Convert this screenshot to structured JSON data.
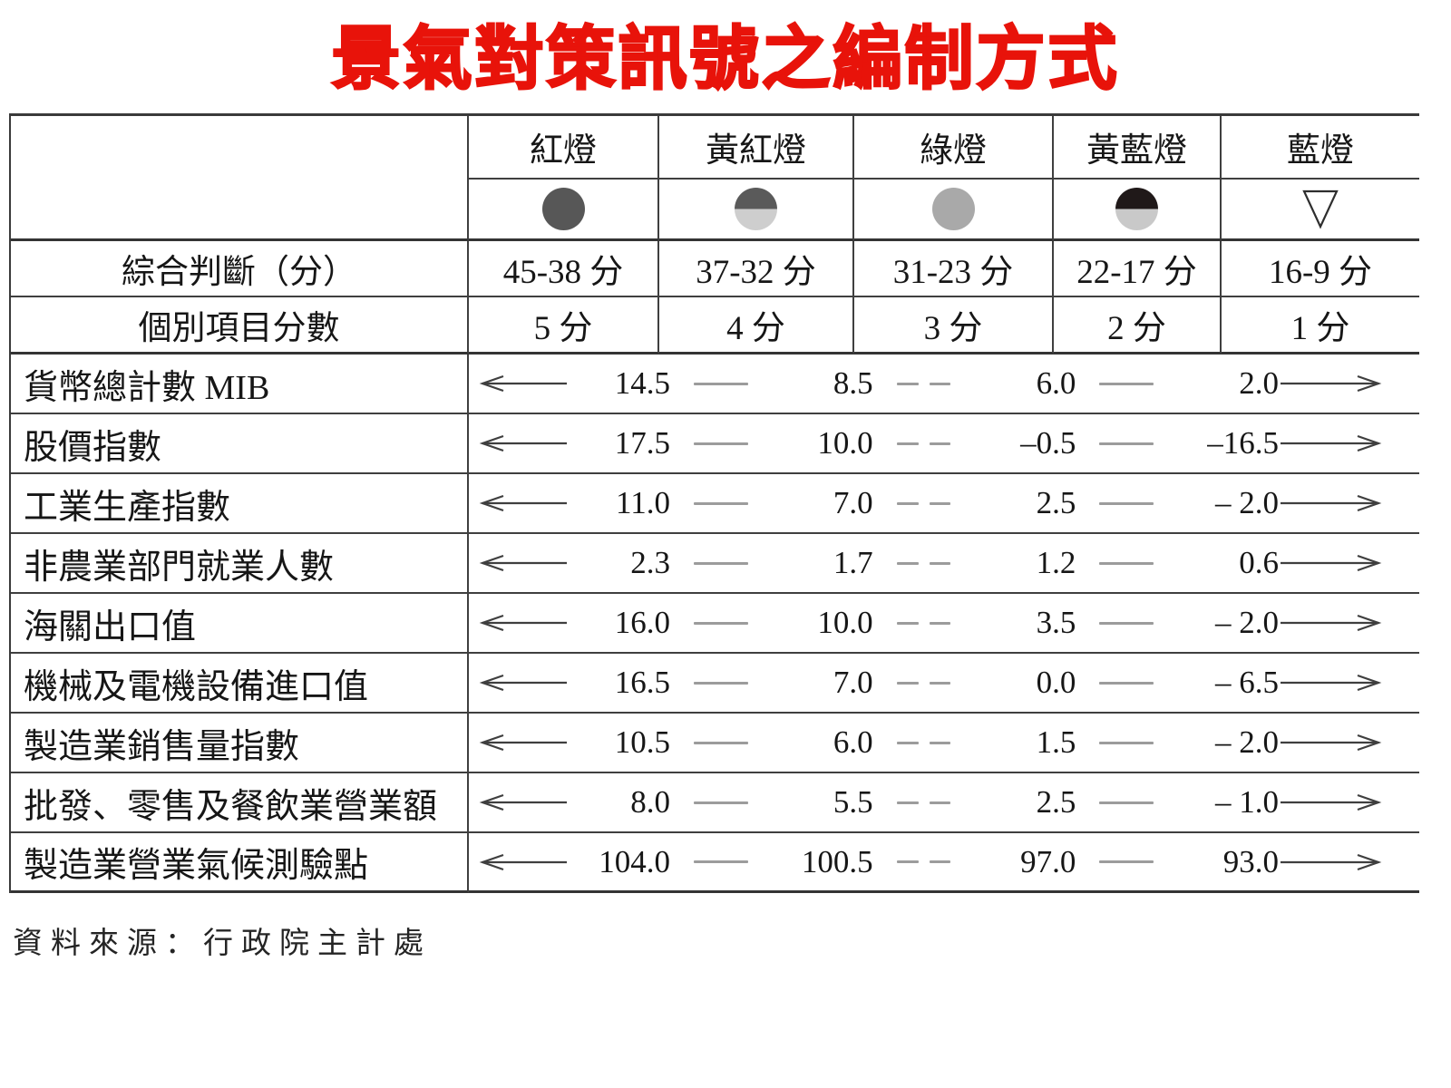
{
  "title": "景氣對策訊號之編制方式",
  "source_note": "資料來源：行政院主計處",
  "colors": {
    "title_red": "#e8130a"
  },
  "table": {
    "lights": [
      {
        "label": "紅燈",
        "score_range": "45-38 分",
        "item_score": "5 分",
        "icon": {
          "name": "red-light-icon",
          "type": "circle",
          "fill": "#575757"
        }
      },
      {
        "label": "黃紅燈",
        "score_range": "37-32 分",
        "item_score": "4 分",
        "icon": {
          "name": "yellow-red-light-icon",
          "type": "circle-half",
          "top": "#5a5a5a",
          "bottom": "#cecece"
        }
      },
      {
        "label": "綠燈",
        "score_range": "31-23 分",
        "item_score": "3 分",
        "icon": {
          "name": "green-light-icon",
          "type": "circle",
          "fill": "#a9a9a9"
        }
      },
      {
        "label": "黃藍燈",
        "score_range": "22-17 分",
        "item_score": "2 分",
        "icon": {
          "name": "yellow-blue-light-icon",
          "type": "circle-half",
          "top": "#201919",
          "bottom": "#c9c9c9"
        }
      },
      {
        "label": "藍燈",
        "score_range": "16-9 分",
        "item_score": "1 分",
        "icon": {
          "name": "blue-light-icon",
          "type": "triangle-down",
          "stroke": "#2e2e2e"
        }
      }
    ],
    "row_headers": {
      "composite": "綜合判斷（分）",
      "individual": "個別項目分數"
    },
    "indicators": [
      {
        "label": "貨幣總計數 MIB",
        "thresholds": [
          "14.5",
          "8.5",
          "6.0",
          "2.0"
        ]
      },
      {
        "label": "股價指數",
        "thresholds": [
          "17.5",
          "10.0",
          "–0.5",
          "–16.5"
        ]
      },
      {
        "label": "工業生產指數",
        "thresholds": [
          "11.0",
          "7.0",
          "2.5",
          "– 2.0"
        ]
      },
      {
        "label": "非農業部門就業人數",
        "thresholds": [
          "2.3",
          "1.7",
          "1.2",
          "0.6"
        ]
      },
      {
        "label": "海關出口值",
        "thresholds": [
          "16.0",
          "10.0",
          "3.5",
          "– 2.0"
        ]
      },
      {
        "label": "機械及電機設備進口值",
        "thresholds": [
          "16.5",
          "7.0",
          "0.0",
          "– 6.5"
        ]
      },
      {
        "label": "製造業銷售量指數",
        "thresholds": [
          "10.5",
          "6.0",
          "1.5",
          "– 2.0"
        ]
      },
      {
        "label": "批發、零售及餐飲業營業額",
        "thresholds": [
          "8.0",
          "5.5",
          "2.5",
          "– 1.0"
        ]
      },
      {
        "label": "製造業營業氣候測驗點",
        "thresholds": [
          "104.0",
          "100.5",
          "97.0",
          "93.0"
        ]
      }
    ]
  }
}
